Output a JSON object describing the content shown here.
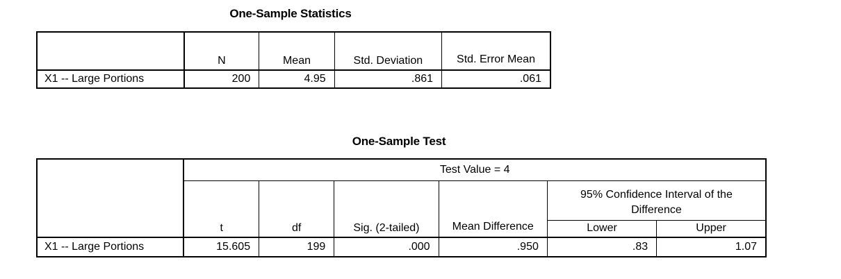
{
  "one_sample_statistics": {
    "title": "One-Sample Statistics",
    "headers": {
      "n": "N",
      "mean": "Mean",
      "std_deviation": "Std. Deviation",
      "std_error_mean": "Std. Error Mean"
    },
    "row": {
      "label": "X1 -- Large Portions",
      "n": "200",
      "mean": "4.95",
      "std_deviation": ".861",
      "std_error_mean": ".061"
    }
  },
  "one_sample_test": {
    "title": "One-Sample Test",
    "test_value_header": "Test Value = 4",
    "headers": {
      "t": "t",
      "df": "df",
      "sig": "Sig. (2-tailed)",
      "mean_difference": "Mean Difference",
      "ci": "95% Confidence Interval of the Difference",
      "lower": "Lower",
      "upper": "Upper"
    },
    "row": {
      "label": "X1 -- Large Portions",
      "t": "15.605",
      "df": "199",
      "sig": ".000",
      "mean_difference": ".950",
      "lower": ".83",
      "upper": "1.07"
    }
  }
}
